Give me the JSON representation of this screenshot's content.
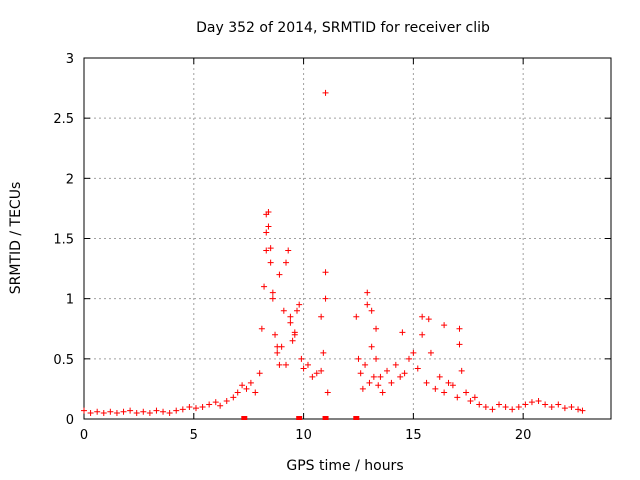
{
  "chart_data": {
    "type": "scatter",
    "title": "Day 352 of 2014, SRMTID for receiver clib",
    "xlabel": "GPS time / hours",
    "ylabel": "SRMTID / TECUs",
    "xlim": [
      0,
      24
    ],
    "ylim": [
      0,
      3
    ],
    "xticks": [
      0,
      5,
      10,
      15,
      20
    ],
    "xtick_labels": [
      "0",
      "5",
      "10",
      "15",
      "20"
    ],
    "yticks": [
      0,
      0.5,
      1,
      1.5,
      2,
      2.5,
      3
    ],
    "ytick_labels": [
      "0",
      "0.5",
      "1",
      "1.5",
      "2",
      "2.5",
      "3"
    ],
    "grid": true,
    "legend": "none",
    "marker": "+",
    "series": [
      {
        "name": "SRMTID",
        "color": "#ff0000",
        "x": [
          0.0,
          0.3,
          0.6,
          0.9,
          1.2,
          1.5,
          1.8,
          2.1,
          2.4,
          2.7,
          3.0,
          3.3,
          3.6,
          3.9,
          4.2,
          4.5,
          4.8,
          5.1,
          5.4,
          5.7,
          6.0,
          6.2,
          6.5,
          6.8,
          7.0,
          7.2,
          7.4,
          7.6,
          7.8,
          8.0,
          8.1,
          8.2,
          8.3,
          8.4,
          8.5,
          8.6,
          8.7,
          8.8,
          8.9,
          9.0,
          9.1,
          9.2,
          9.3,
          9.4,
          9.5,
          9.6,
          9.7,
          9.8,
          9.9,
          10.0,
          10.2,
          10.4,
          10.6,
          10.8,
          10.9,
          11.0,
          11.1,
          12.4,
          12.5,
          12.6,
          12.7,
          12.8,
          12.9,
          13.0,
          13.1,
          13.2,
          13.3,
          13.4,
          13.5,
          13.6,
          13.8,
          14.0,
          14.2,
          14.4,
          14.6,
          14.8,
          15.0,
          15.2,
          15.4,
          15.6,
          15.8,
          16.0,
          16.2,
          16.4,
          16.6,
          16.8,
          17.0,
          17.2,
          17.4,
          17.6,
          17.8,
          18.0,
          18.3,
          18.6,
          18.9,
          19.2,
          19.5,
          19.8,
          20.1,
          20.4,
          20.7,
          21.0,
          21.3,
          21.6,
          21.9,
          22.2,
          22.5,
          22.7,
          8.3,
          8.4,
          8.3,
          8.5,
          8.6,
          8.8,
          8.9,
          9.2,
          9.4,
          9.6,
          10.8,
          11.0,
          11.0,
          12.9,
          13.1,
          13.3,
          14.5,
          15.4,
          15.7,
          16.4,
          17.1,
          17.1
        ],
        "y": [
          0.07,
          0.05,
          0.06,
          0.05,
          0.06,
          0.05,
          0.06,
          0.07,
          0.05,
          0.06,
          0.05,
          0.07,
          0.06,
          0.05,
          0.07,
          0.08,
          0.1,
          0.09,
          0.1,
          0.12,
          0.14,
          0.11,
          0.15,
          0.18,
          0.22,
          0.28,
          0.25,
          0.3,
          0.22,
          0.38,
          0.75,
          1.1,
          1.4,
          1.6,
          1.3,
          1.0,
          0.7,
          0.55,
          0.45,
          0.6,
          0.9,
          1.3,
          1.4,
          0.8,
          0.65,
          0.7,
          0.9,
          0.95,
          0.5,
          0.42,
          0.45,
          0.35,
          0.38,
          0.4,
          0.55,
          1.0,
          0.22,
          0.85,
          0.5,
          0.38,
          0.25,
          0.45,
          0.95,
          0.3,
          0.6,
          0.35,
          0.5,
          0.28,
          0.35,
          0.22,
          0.4,
          0.3,
          0.45,
          0.35,
          0.38,
          0.5,
          0.55,
          0.42,
          0.7,
          0.3,
          0.55,
          0.25,
          0.35,
          0.22,
          0.3,
          0.28,
          0.18,
          0.4,
          0.22,
          0.15,
          0.18,
          0.12,
          0.1,
          0.08,
          0.12,
          0.1,
          0.08,
          0.1,
          0.12,
          0.14,
          0.15,
          0.12,
          0.1,
          0.12,
          0.09,
          0.1,
          0.08,
          0.07,
          1.7,
          1.72,
          1.55,
          1.42,
          1.05,
          0.6,
          1.2,
          0.45,
          0.85,
          0.72,
          0.85,
          1.22,
          2.71,
          1.05,
          0.9,
          0.75,
          0.72,
          0.85,
          0.83,
          0.78,
          0.75,
          0.62
        ],
        "data_gap_markers_x": [
          7.3,
          9.8,
          11.0,
          12.4
        ]
      }
    ]
  }
}
